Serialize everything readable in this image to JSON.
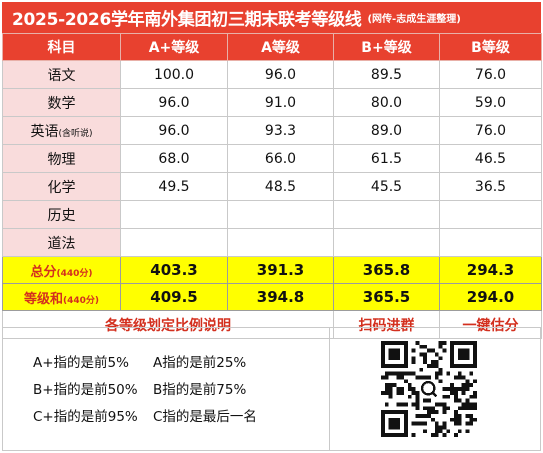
{
  "title": {
    "main": "2025-2026学年南外集团初三期末联考等级线",
    "sub": "(网传-志成生涯整理)"
  },
  "header": [
    "科目",
    "A+等级",
    "A等级",
    "B+等级",
    "B等级"
  ],
  "subjects": [
    {
      "name": "语文",
      "note": "",
      "values": [
        "100.0",
        "96.0",
        "89.5",
        "76.0"
      ]
    },
    {
      "name": "数学",
      "note": "",
      "values": [
        "96.0",
        "91.0",
        "80.0",
        "59.0"
      ]
    },
    {
      "name": "英语",
      "note": "(含听说)",
      "values": [
        "96.0",
        "93.3",
        "89.0",
        "76.0"
      ]
    },
    {
      "name": "物理",
      "note": "",
      "values": [
        "68.0",
        "66.0",
        "61.5",
        "46.5"
      ]
    },
    {
      "name": "化学",
      "note": "",
      "values": [
        "49.5",
        "48.5",
        "45.5",
        "36.5"
      ]
    },
    {
      "name": "历史",
      "note": "",
      "values": [
        "",
        "",
        "",
        ""
      ]
    },
    {
      "name": "道法",
      "note": "",
      "values": [
        "",
        "",
        "",
        ""
      ]
    }
  ],
  "totals": [
    {
      "name": "总分",
      "note": "(440分)",
      "values": [
        "403.3",
        "391.3",
        "365.8",
        "294.3"
      ]
    },
    {
      "name": "等级和",
      "note": "(440分)",
      "values": [
        "409.5",
        "394.8",
        "365.5",
        "294.0"
      ]
    }
  ],
  "links": {
    "ratio": "各等级划定比例说明",
    "scan": "扫码进群",
    "estimate": "一键估分"
  },
  "legend": [
    [
      "A+指的是前5%",
      "A指的是前25%"
    ],
    [
      "B+指的是前50%",
      "B指的是前75%"
    ],
    [
      "C+指的是前95%",
      "C指的是最后一名"
    ]
  ],
  "qr": {
    "icon": "qr-code-icon"
  },
  "colors": {
    "accent": "#e8412f",
    "highlight": "#ffff00",
    "subject_bg": "#f9dcdc",
    "link_text": "#d32f1e"
  }
}
